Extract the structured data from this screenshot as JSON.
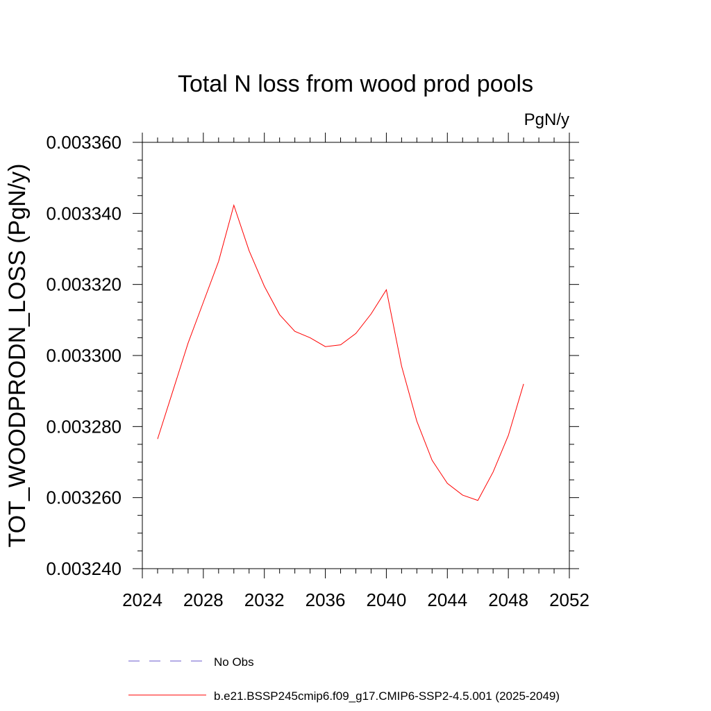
{
  "chart_data": {
    "type": "line",
    "title": "Total N loss from wood prod pools",
    "units_label": "PgN/y",
    "ylabel": "TOT_WOODPRODN_LOSS  (PgN/y)",
    "xlabel": "",
    "xlim": [
      2024,
      2052
    ],
    "ylim": [
      0.00324,
      0.00336
    ],
    "x_ticks": [
      2024,
      2028,
      2032,
      2036,
      2040,
      2044,
      2048,
      2052
    ],
    "y_ticks": [
      "0.003240",
      "0.003260",
      "0.003280",
      "0.003300",
      "0.003320",
      "0.003340",
      "0.003360"
    ],
    "y_tick_values": [
      0.00324,
      0.00326,
      0.00328,
      0.0033,
      0.00332,
      0.00334,
      0.00336
    ],
    "series": [
      {
        "name": "b.e21.BSSP245cmip6.f09_g17.CMIP6-SSP2-4.5.001 (2025-2049)",
        "color": "#ff0000",
        "x": [
          2025,
          2026,
          2027,
          2028,
          2029,
          2030,
          2031,
          2032,
          2033,
          2034,
          2035,
          2036,
          2037,
          2038,
          2039,
          2040,
          2041,
          2042,
          2043,
          2044,
          2045,
          2046,
          2047,
          2048,
          2049
        ],
        "y": [
          0.0032765,
          0.00329,
          0.0033035,
          0.003315,
          0.0033265,
          0.0033423,
          0.0033295,
          0.0033195,
          0.0033115,
          0.0033068,
          0.003305,
          0.0033025,
          0.003303,
          0.0033062,
          0.0033117,
          0.0033185,
          0.003297,
          0.0032815,
          0.0032705,
          0.003264,
          0.0032607,
          0.0032592,
          0.0032672,
          0.0032775,
          0.003292
        ]
      }
    ],
    "legend": {
      "placement": "bottom",
      "entries": [
        {
          "label": "No Obs",
          "color": "#6a5acd",
          "style": "dashed"
        },
        {
          "label": "b.e21.BSSP245cmip6.f09_g17.CMIP6-SSP2-4.5.001 (2025-2049)",
          "color": "#ff0000",
          "style": "solid"
        }
      ]
    },
    "grid": false
  }
}
